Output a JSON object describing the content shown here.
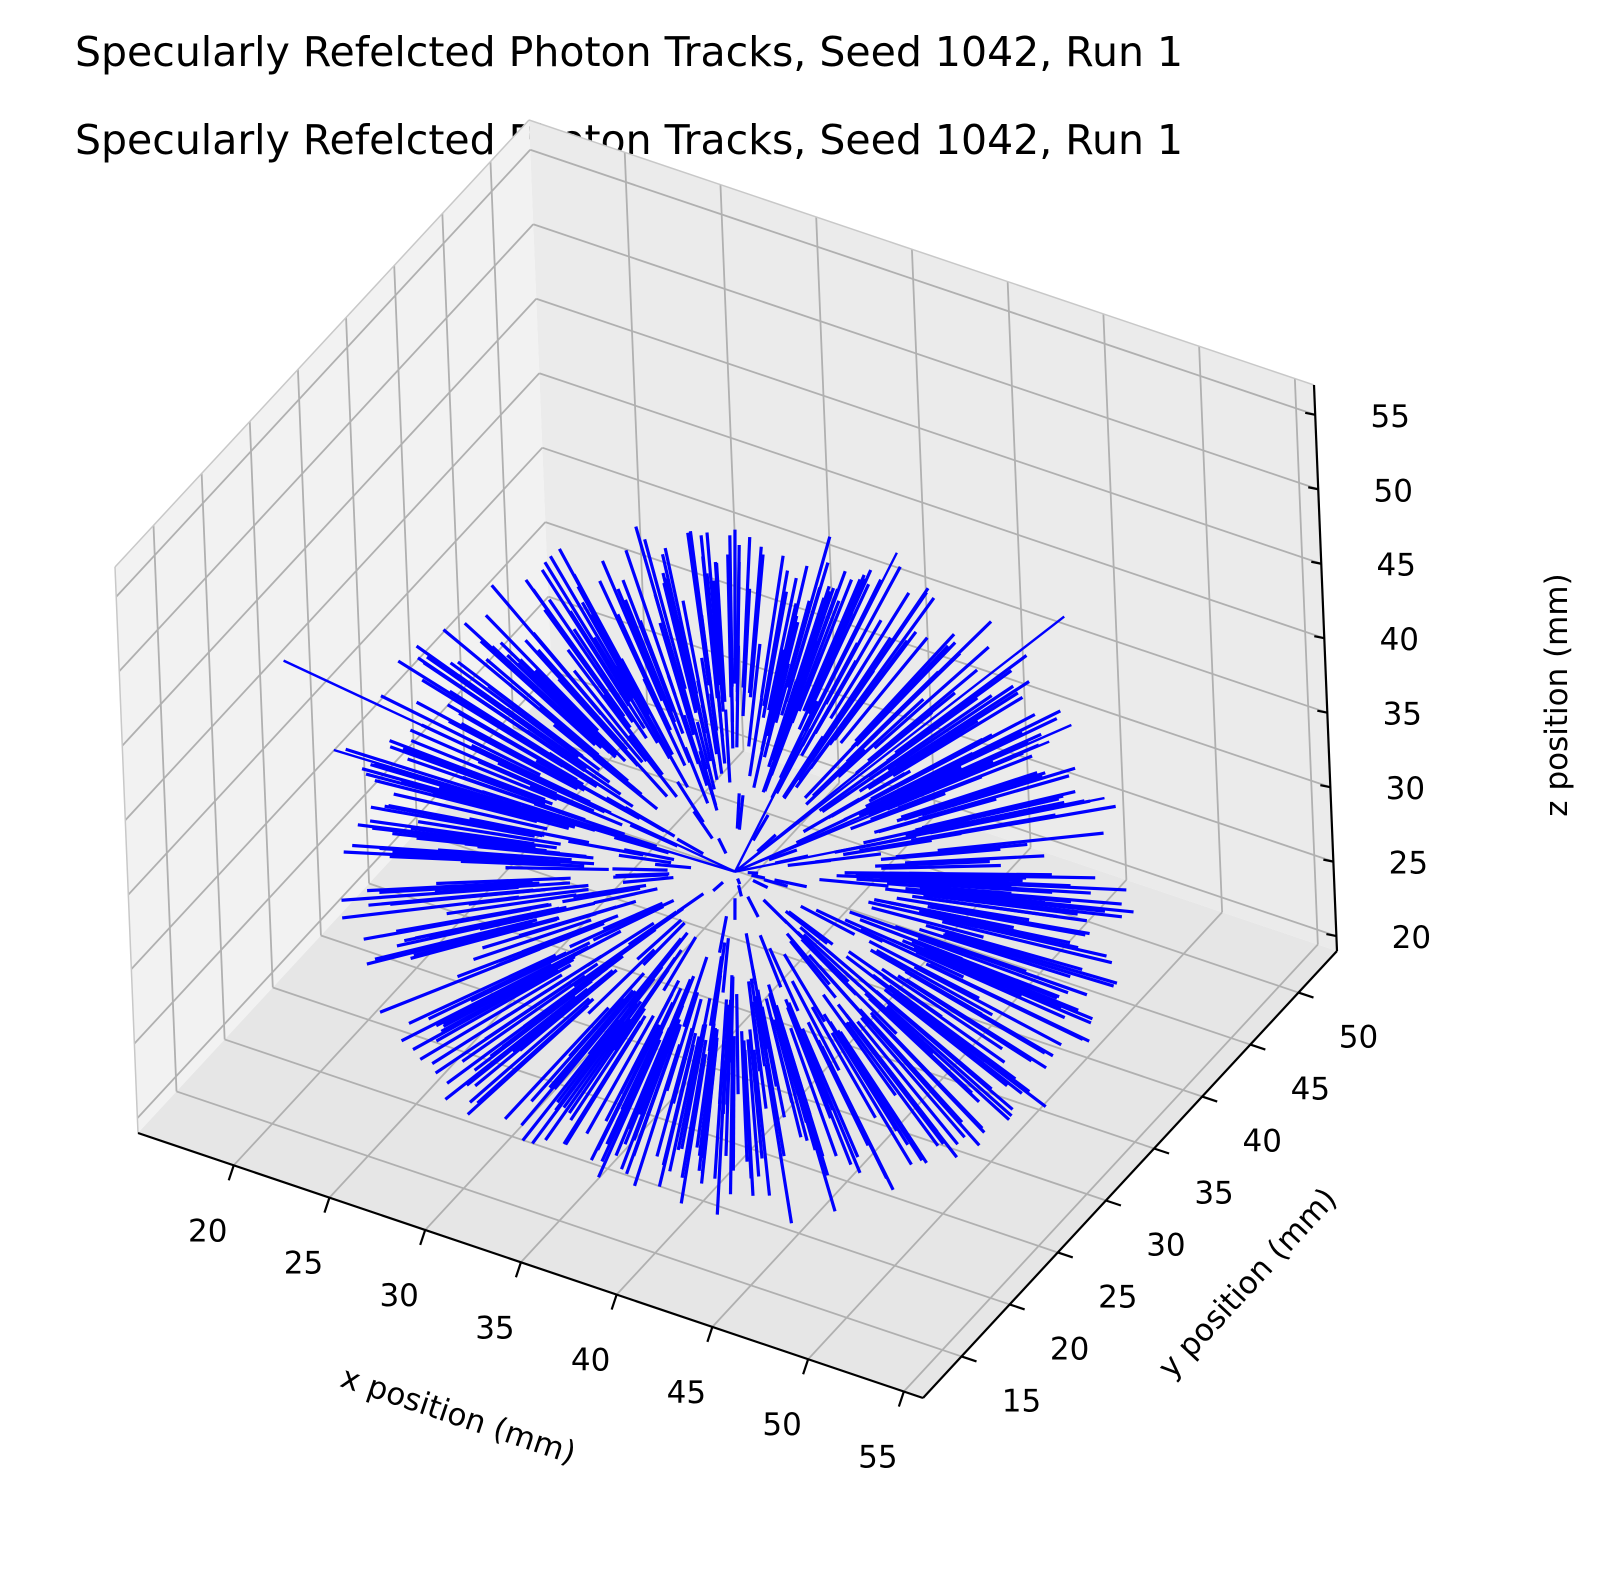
{
  "titles": [
    "Specularly Refelcted Photon Tracks, Seed 1042, Run 1",
    "Specularly Refelcted Photon Tracks, Seed 1042, Run 1"
  ],
  "chart_data": {
    "type": "line3d",
    "title": "Specularly Refelcted Photon Tracks, Seed 1042, Run 1",
    "xlabel": "x position (mm)",
    "ylabel": "y position (mm)",
    "zlabel": "z position (mm)",
    "xticks": [
      20,
      25,
      30,
      35,
      40,
      45,
      50,
      55
    ],
    "yticks": [
      15,
      20,
      25,
      30,
      35,
      40,
      45,
      50
    ],
    "zticks": [
      20,
      25,
      30,
      35,
      40,
      45,
      50,
      55
    ],
    "xlim": [
      15,
      56
    ],
    "ylim": [
      11,
      54
    ],
    "zlim": [
      19,
      57
    ],
    "grid": true,
    "line_color": "#0000ff",
    "pane_colors": [
      "#f2f2f2",
      "#ebebeb",
      "#e6e6e6"
    ],
    "series": [
      {
        "tracks": [
          {
            "start": [
              36,
              32,
              31
            ],
            "end": [
              20,
              18,
              48
            ]
          },
          {
            "start": [
              36,
              32,
              31
            ],
            "end": [
              23,
              17,
              44
            ]
          },
          {
            "start": [
              36,
              32,
              31
            ],
            "end": [
              41,
              40,
              49
            ]
          },
          {
            "start": [
              36,
              32,
              31
            ],
            "end": [
              52,
              36,
              45
            ]
          },
          {
            "start": [
              36,
              32,
              31
            ],
            "end": [
              46,
              47,
              42
            ]
          },
          {
            "start": [
              36,
              32,
              31
            ],
            "end": [
              52,
              39,
              38
            ]
          },
          {
            "start": [
              36,
              32,
              31
            ],
            "end": [
              46,
              45,
              35
            ]
          },
          {
            "start": [
              36,
              32,
              31
            ],
            "end": [
              42,
              41,
              38
            ]
          }
        ]
      }
    ]
  }
}
